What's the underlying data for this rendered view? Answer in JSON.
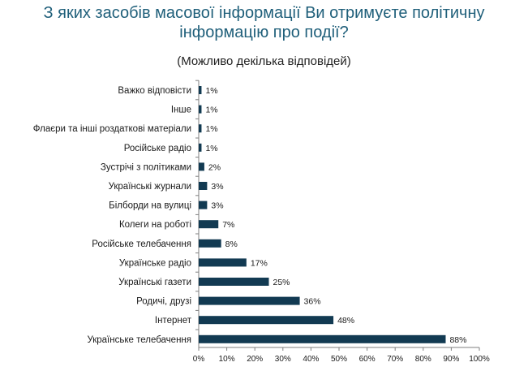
{
  "header": {
    "title_line1": "З яких засобів масової інформації Ви отримуєте політичну",
    "title_line2": "інформацію про події?",
    "subtitle": "(Можливо декілька відповідей)"
  },
  "chart_data": {
    "type": "bar",
    "orientation": "horizontal",
    "categories": [
      "Важко відповісти",
      "Інше",
      "Флаєри та інші роздаткові матеріали",
      "Російське радіо",
      "Зустрічі з політиками",
      "Українські журнали",
      "Білборди на вулиці",
      "Колеги на роботі",
      "Російське телебачення",
      "Українське радіо",
      "Українські газети",
      "Родичі, друзі",
      "Інтернет",
      "Українське телебачення"
    ],
    "values": [
      1,
      1,
      1,
      1,
      2,
      3,
      3,
      7,
      8,
      17,
      25,
      36,
      48,
      88
    ],
    "value_labels": [
      "1%",
      "1%",
      "1%",
      "1%",
      "2%",
      "3%",
      "3%",
      "7%",
      "8%",
      "17%",
      "25%",
      "36%",
      "48%",
      "88%"
    ],
    "xlim": [
      0,
      100
    ],
    "xticks": [
      0,
      10,
      20,
      30,
      40,
      50,
      60,
      70,
      80,
      90,
      100
    ],
    "xtick_labels": [
      "0%",
      "10%",
      "20%",
      "30%",
      "40%",
      "50%",
      "60%",
      "70%",
      "80%",
      "90%",
      "100%"
    ],
    "grid": false,
    "bar_color": "#123a52",
    "axis_color": "#7f7f7f"
  }
}
